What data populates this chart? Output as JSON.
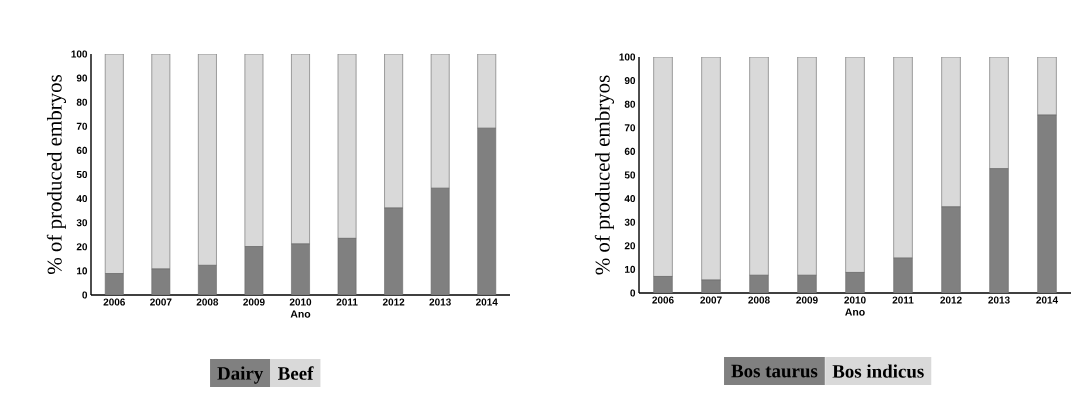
{
  "chart_data": [
    {
      "type": "bar",
      "stacked": true,
      "categories": [
        "2006",
        "2007",
        "2008",
        "2009",
        "2010",
        "2011",
        "2012",
        "2013",
        "2014"
      ],
      "xlabel": "Ano",
      "ylabel": "% of produced embryos",
      "ylim": [
        0,
        100
      ],
      "yticks": [
        0,
        10,
        20,
        30,
        40,
        50,
        60,
        70,
        80,
        90,
        100
      ],
      "legend": "bottom",
      "series": [
        {
          "name": "Dairy",
          "color": "#808080",
          "values": [
            8.9,
            10.8,
            12.3,
            20.1,
            21.2,
            23.5,
            36.1,
            44.3,
            69.2
          ]
        },
        {
          "name": "Beef",
          "color": "#d9d9d9",
          "values": [
            91.1,
            89.2,
            87.7,
            79.9,
            78.8,
            76.5,
            63.9,
            55.7,
            30.8
          ]
        }
      ]
    },
    {
      "type": "bar",
      "stacked": true,
      "categories": [
        "2006",
        "2007",
        "2008",
        "2009",
        "2010",
        "2011",
        "2012",
        "2013",
        "2014"
      ],
      "xlabel": "Ano",
      "ylabel": "% of produced embryos",
      "ylim": [
        0,
        100
      ],
      "yticks": [
        0,
        10,
        20,
        30,
        40,
        50,
        60,
        70,
        80,
        90,
        100
      ],
      "legend": "bottom",
      "series": [
        {
          "name": "Bos taurus",
          "color": "#808080",
          "values": [
            7.0,
            5.5,
            7.5,
            7.5,
            8.7,
            14.8,
            36.5,
            52.7,
            75.4
          ]
        },
        {
          "name": "Bos indicus",
          "color": "#d9d9d9",
          "values": [
            93.0,
            94.5,
            92.5,
            92.5,
            91.3,
            85.2,
            63.5,
            47.3,
            24.6
          ]
        }
      ]
    }
  ]
}
